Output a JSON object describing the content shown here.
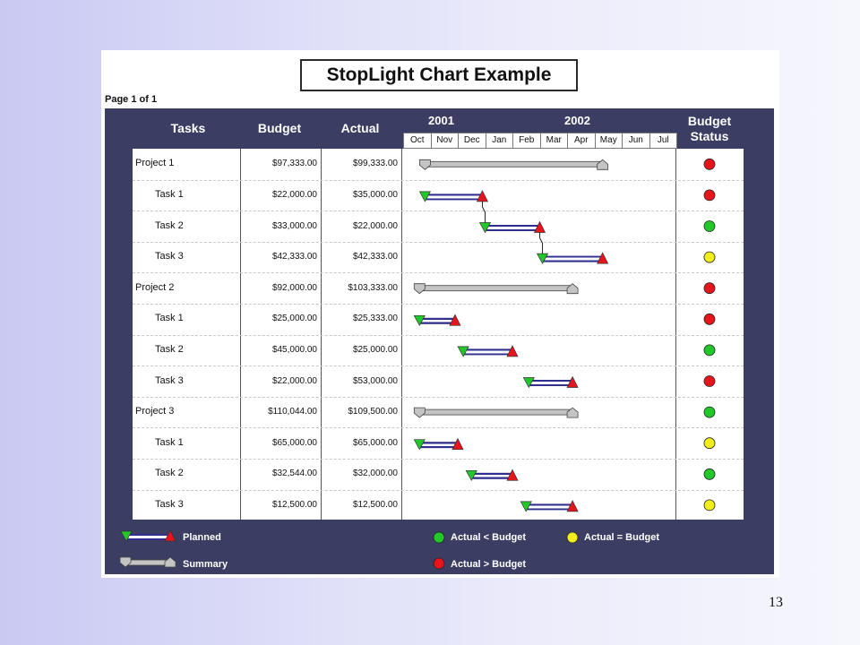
{
  "title": "StopLight Chart Example",
  "page_label": "Page 1 of 1",
  "page_number": "13",
  "headers": {
    "tasks": "Tasks",
    "budget": "Budget",
    "actual": "Actual",
    "budget_status_line1": "Budget",
    "budget_status_line2": "Status"
  },
  "years": [
    "2001",
    "2002"
  ],
  "months": [
    "Oct",
    "Nov",
    "Dec",
    "Jan",
    "Feb",
    "Mar",
    "Apr",
    "May",
    "Jun",
    "Jul"
  ],
  "legend": {
    "planned": "Planned",
    "summary": "Summary",
    "actual_lt_budget": "Actual < Budget",
    "actual_eq_budget": "Actual = Budget",
    "actual_gt_budget": "Actual > Budget"
  },
  "colors": {
    "red": "#e8141b",
    "green": "#22c82a",
    "yellow": "#f2ee19",
    "summary_bar": "#c4c4c4",
    "panel": "#3b3d63",
    "bar_blue": "#2f2f8f"
  },
  "chart_data": {
    "type": "table",
    "title": "StopLight Chart Example",
    "time_axis": {
      "years": [
        "2001",
        "2002"
      ],
      "months": [
        "Oct",
        "Nov",
        "Dec",
        "Jan",
        "Feb",
        "Mar",
        "Apr",
        "May",
        "Jun",
        "Jul"
      ]
    },
    "rows": [
      {
        "name": "Project 1",
        "level": 0,
        "budget": "$97,333.00",
        "actual": "$99,333.00",
        "status": "red",
        "start": 0.8,
        "end": 7.3
      },
      {
        "name": "Task 1",
        "level": 1,
        "budget": "$22,000.00",
        "actual": "$35,000.00",
        "status": "red",
        "start": 0.8,
        "end": 2.9
      },
      {
        "name": "Task 2",
        "level": 1,
        "budget": "$33,000.00",
        "actual": "$22,000.00",
        "status": "green",
        "start": 3.0,
        "end": 5.0
      },
      {
        "name": "Task 3",
        "level": 1,
        "budget": "$42,333.00",
        "actual": "$42,333.00",
        "status": "yellow",
        "start": 5.1,
        "end": 7.3
      },
      {
        "name": "Project 2",
        "level": 0,
        "budget": "$92,000.00",
        "actual": "$103,333.00",
        "status": "red",
        "start": 0.6,
        "end": 6.2
      },
      {
        "name": "Task 1",
        "level": 1,
        "budget": "$25,000.00",
        "actual": "$25,333.00",
        "status": "red",
        "start": 0.6,
        "end": 1.9
      },
      {
        "name": "Task 2",
        "level": 1,
        "budget": "$45,000.00",
        "actual": "$25,000.00",
        "status": "green",
        "start": 2.2,
        "end": 4.0
      },
      {
        "name": "Task 3",
        "level": 1,
        "budget": "$22,000.00",
        "actual": "$53,000.00",
        "status": "red",
        "start": 4.6,
        "end": 6.2
      },
      {
        "name": "Project 3",
        "level": 0,
        "budget": "$110,044.00",
        "actual": "$109,500.00",
        "status": "green",
        "start": 0.6,
        "end": 6.2
      },
      {
        "name": "Task 1",
        "level": 1,
        "budget": "$65,000.00",
        "actual": "$65,000.00",
        "status": "yellow",
        "start": 0.6,
        "end": 2.0
      },
      {
        "name": "Task 2",
        "level": 1,
        "budget": "$32,544.00",
        "actual": "$32,000.00",
        "status": "green",
        "start": 2.5,
        "end": 4.0
      },
      {
        "name": "Task 3",
        "level": 1,
        "budget": "$12,500.00",
        "actual": "$12,500.00",
        "status": "yellow",
        "start": 4.5,
        "end": 6.2
      }
    ],
    "dependencies": [
      [
        1,
        2
      ],
      [
        2,
        3
      ]
    ]
  }
}
